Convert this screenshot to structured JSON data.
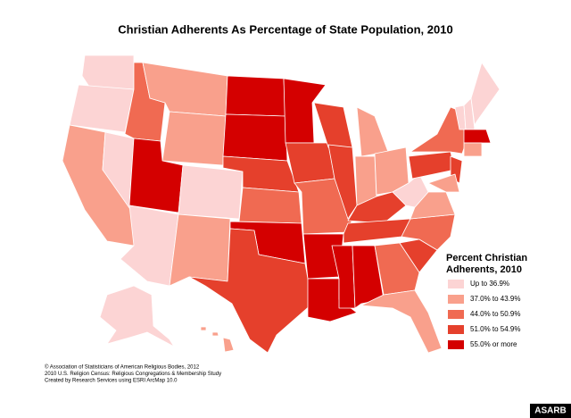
{
  "title": "Christian Adherents As Percentage of State Population, 2010",
  "legend": {
    "title_lines": [
      "Percent Christian",
      "Adherents, 2010"
    ],
    "items": [
      {
        "label": "Up to 36.9%",
        "color": "#fcd4d4"
      },
      {
        "label": "37.0% to 43.9%",
        "color": "#f9a08c"
      },
      {
        "label": "44.0% to 50.9%",
        "color": "#f06a52"
      },
      {
        "label": "51.0% to 54.9%",
        "color": "#e5402c"
      },
      {
        "label": "55.0% or more",
        "color": "#d40000"
      }
    ]
  },
  "footer": [
    "© Association of Statisticians of American Religious Bodies, 2012",
    "2010 U.S. Religion Census: Religious Congregations & Membership Study",
    "Created by Research Services using ESRI ArcMap 10.0"
  ],
  "watermark": "ASARB"
}
